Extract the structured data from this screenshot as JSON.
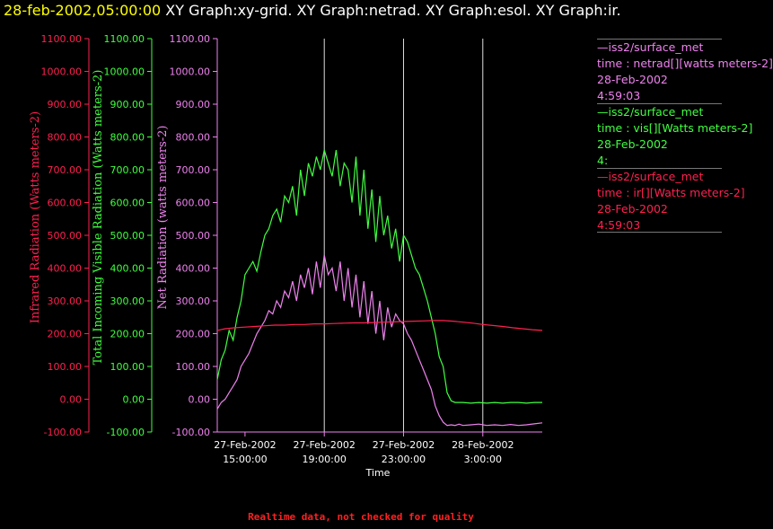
{
  "header": {
    "timestamp": "28-feb-2002,05:00:00",
    "graphs": "XY Graph:xy-grid.  XY Graph:netrad.  XY Graph:esol.  XY Graph:ir."
  },
  "colors": {
    "ir": "#ff2050",
    "vis": "#40ff40",
    "net": "#ee82ee",
    "grid": "#dddddd",
    "axis": "#ee82ee",
    "text": "#ffffff",
    "timestamp": "#ffff00",
    "footer": "#ff2020"
  },
  "legend": [
    {
      "line1": "—iss2/surface_met",
      "line2": "time : netrad[][watts meters-2]",
      "line3": "28-Feb-2002",
      "line4": "4:59:03",
      "color": "#ee82ee"
    },
    {
      "line1": "—iss2/surface_met",
      "line2": "time : vis[][Watts meters-2]",
      "line3": "28-Feb-2002",
      "line4": "4:",
      "color": "#40ff40"
    },
    {
      "line1": "—iss2/surface_met",
      "line2": "time : ir[][Watts meters-2]",
      "line3": "28-Feb-2002",
      "line4": "4:59:03",
      "color": "#ff2050"
    }
  ],
  "footer": {
    "note": "Realtime data, not checked for quality"
  },
  "chart_data": {
    "type": "line",
    "xlabel": "Time",
    "xticks": [
      {
        "date": "27-Feb-2002",
        "time": "15:00:00",
        "hour": 15
      },
      {
        "date": "27-Feb-2002",
        "time": "19:00:00",
        "hour": 19
      },
      {
        "date": "27-Feb-2002",
        "time": "23:00:00",
        "hour": 23
      },
      {
        "date": "28-Feb-2002",
        "time": "3:00:00",
        "hour": 27
      }
    ],
    "xlim_hours": [
      13.6,
      30.0
    ],
    "grid_hours": [
      19,
      23,
      27
    ],
    "ylim": [
      -100,
      1100
    ],
    "yticks": [
      "1100.00",
      "1000.00",
      "900.00",
      "800.00",
      "700.00",
      "600.00",
      "500.00",
      "400.00",
      "300.00",
      "200.00",
      "100.00",
      "0.00",
      "-100.00"
    ],
    "axes": [
      {
        "label": "Infrared Radiation (Watts meters-2)",
        "color": "#ff2050"
      },
      {
        "label": "Total Incoming Visible Radiation (Watts meters-2)",
        "color": "#40ff40"
      },
      {
        "label": "Net Radiation (watts meters-2)",
        "color": "#ee82ee"
      }
    ],
    "series": [
      {
        "key": "vis",
        "color": "#40ff40",
        "x": [
          13.6,
          13.8,
          14.0,
          14.2,
          14.4,
          14.6,
          14.8,
          15.0,
          15.2,
          15.4,
          15.6,
          15.8,
          16.0,
          16.2,
          16.4,
          16.6,
          16.8,
          17.0,
          17.2,
          17.4,
          17.6,
          17.8,
          18.0,
          18.2,
          18.4,
          18.6,
          18.8,
          19.0,
          19.2,
          19.4,
          19.6,
          19.8,
          20.0,
          20.2,
          20.4,
          20.6,
          20.8,
          21.0,
          21.2,
          21.4,
          21.6,
          21.8,
          22.0,
          22.2,
          22.4,
          22.6,
          22.8,
          23.0,
          23.2,
          23.4,
          23.6,
          23.8,
          24.0,
          24.2,
          24.4,
          24.6,
          24.8,
          25.0,
          25.2,
          25.4,
          25.6,
          25.8,
          26.0,
          26.4,
          26.8,
          27.2,
          27.6,
          28.0,
          28.4,
          28.8,
          29.2,
          29.6,
          30.0
        ],
        "y": [
          60,
          120,
          150,
          210,
          180,
          250,
          300,
          380,
          400,
          420,
          390,
          450,
          500,
          520,
          560,
          580,
          540,
          620,
          600,
          650,
          560,
          700,
          620,
          720,
          680,
          740,
          700,
          760,
          720,
          680,
          760,
          650,
          720,
          700,
          600,
          740,
          560,
          700,
          520,
          640,
          480,
          620,
          500,
          560,
          460,
          520,
          420,
          500,
          480,
          440,
          400,
          380,
          340,
          300,
          250,
          200,
          130,
          100,
          20,
          -5,
          -10,
          -10,
          -10,
          -12,
          -10,
          -12,
          -10,
          -12,
          -10,
          -10,
          -12,
          -10,
          -10
        ]
      },
      {
        "key": "net",
        "color": "#ee82ee",
        "x": [
          13.6,
          13.8,
          14.0,
          14.2,
          14.4,
          14.6,
          14.8,
          15.0,
          15.2,
          15.4,
          15.6,
          15.8,
          16.0,
          16.2,
          16.4,
          16.6,
          16.8,
          17.0,
          17.2,
          17.4,
          17.6,
          17.8,
          18.0,
          18.2,
          18.4,
          18.6,
          18.8,
          19.0,
          19.2,
          19.4,
          19.6,
          19.8,
          20.0,
          20.2,
          20.4,
          20.6,
          20.8,
          21.0,
          21.2,
          21.4,
          21.6,
          21.8,
          22.0,
          22.2,
          22.4,
          22.6,
          22.8,
          23.0,
          23.2,
          23.4,
          23.6,
          23.8,
          24.0,
          24.2,
          24.4,
          24.6,
          24.8,
          25.0,
          25.2,
          25.4,
          25.6,
          25.8,
          26.0,
          26.4,
          26.8,
          27.2,
          27.6,
          28.0,
          28.4,
          28.8,
          29.2,
          29.6,
          30.0
        ],
        "y": [
          -30,
          -10,
          0,
          20,
          40,
          60,
          100,
          120,
          140,
          170,
          200,
          220,
          240,
          270,
          260,
          300,
          280,
          330,
          310,
          360,
          300,
          380,
          340,
          400,
          320,
          420,
          340,
          440,
          380,
          400,
          330,
          420,
          300,
          400,
          280,
          380,
          250,
          360,
          230,
          330,
          200,
          300,
          180,
          280,
          220,
          260,
          240,
          230,
          200,
          180,
          150,
          120,
          90,
          60,
          30,
          -20,
          -50,
          -70,
          -80,
          -78,
          -80,
          -76,
          -80,
          -78,
          -76,
          -80,
          -78,
          -80,
          -77,
          -80,
          -78,
          -75,
          -72
        ]
      },
      {
        "key": "ir",
        "color": "#ff2050",
        "x": [
          13.6,
          14.0,
          14.5,
          15.0,
          15.5,
          16.0,
          16.5,
          17.0,
          17.5,
          18.0,
          18.5,
          19.0,
          19.5,
          20.0,
          20.5,
          21.0,
          21.5,
          22.0,
          22.5,
          23.0,
          23.5,
          24.0,
          24.5,
          25.0,
          25.5,
          26.0,
          26.5,
          27.0,
          27.5,
          28.0,
          28.5,
          29.0,
          29.5,
          30.0
        ],
        "y": [
          210,
          215,
          218,
          220,
          222,
          224,
          226,
          226,
          228,
          228,
          230,
          230,
          231,
          232,
          233,
          233,
          234,
          235,
          236,
          237,
          238,
          239,
          240,
          240,
          238,
          235,
          232,
          228,
          225,
          222,
          218,
          215,
          212,
          210
        ]
      }
    ]
  }
}
